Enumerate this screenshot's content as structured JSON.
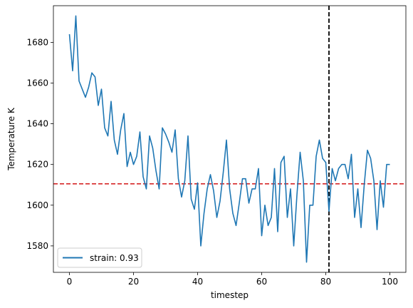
{
  "chart_data": {
    "type": "line",
    "title": "",
    "xlabel": "timestep",
    "ylabel": "Temperature K",
    "xlim": [
      -5,
      105
    ],
    "ylim": [
      1567,
      1698
    ],
    "xticks": [
      0,
      20,
      40,
      60,
      80,
      100
    ],
    "yticks": [
      1580,
      1600,
      1620,
      1640,
      1660,
      1680
    ],
    "grid": false,
    "legend_position": "lower-left",
    "series": [
      {
        "name": "strain: 0.93",
        "color": "#1f77b4",
        "x": [
          0,
          1,
          2,
          3,
          4,
          5,
          6,
          7,
          8,
          9,
          10,
          11,
          12,
          13,
          14,
          15,
          16,
          17,
          18,
          19,
          20,
          21,
          22,
          23,
          24,
          25,
          26,
          27,
          28,
          29,
          30,
          31,
          32,
          33,
          34,
          35,
          36,
          37,
          38,
          39,
          40,
          41,
          42,
          43,
          44,
          45,
          46,
          47,
          48,
          49,
          50,
          51,
          52,
          53,
          54,
          55,
          56,
          57,
          58,
          59,
          60,
          61,
          62,
          63,
          64,
          65,
          66,
          67,
          68,
          69,
          70,
          71,
          72,
          73,
          74,
          75,
          76,
          77,
          78,
          79,
          80,
          81,
          82,
          83,
          84,
          85,
          86,
          87,
          88,
          89,
          90,
          91,
          92,
          93,
          94,
          95,
          96,
          97,
          98,
          99,
          100
        ],
        "y": [
          1684,
          1666,
          1693,
          1661,
          1657,
          1653,
          1658,
          1665,
          1663,
          1649,
          1657,
          1638,
          1634,
          1651,
          1632,
          1625,
          1637,
          1645,
          1619,
          1626,
          1620,
          1624,
          1636,
          1614,
          1608,
          1634,
          1628,
          1617,
          1608,
          1638,
          1635,
          1631,
          1626,
          1637,
          1613,
          1604,
          1612,
          1634,
          1603,
          1598,
          1611,
          1580,
          1596,
          1608,
          1615,
          1607,
          1594,
          1602,
          1616,
          1632,
          1608,
          1596,
          1590,
          1601,
          1613,
          1613,
          1601,
          1608,
          1608,
          1618,
          1585,
          1600,
          1590,
          1594,
          1618,
          1587,
          1621,
          1624,
          1594,
          1608,
          1580,
          1605,
          1626,
          1612,
          1572,
          1600,
          1600,
          1624,
          1632,
          1623,
          1621,
          1597,
          1618,
          1612,
          1618,
          1620,
          1620,
          1613,
          1625,
          1594,
          1608,
          1589,
          1610,
          1627,
          1623,
          1612,
          1588,
          1612,
          1599,
          1620,
          1620
        ]
      }
    ],
    "reference_lines": [
      {
        "orientation": "horizontal",
        "value": 1610.5,
        "color": "#d62728",
        "style": "dashed"
      },
      {
        "orientation": "vertical",
        "value": 81,
        "color": "#000000",
        "style": "dashed"
      }
    ]
  }
}
